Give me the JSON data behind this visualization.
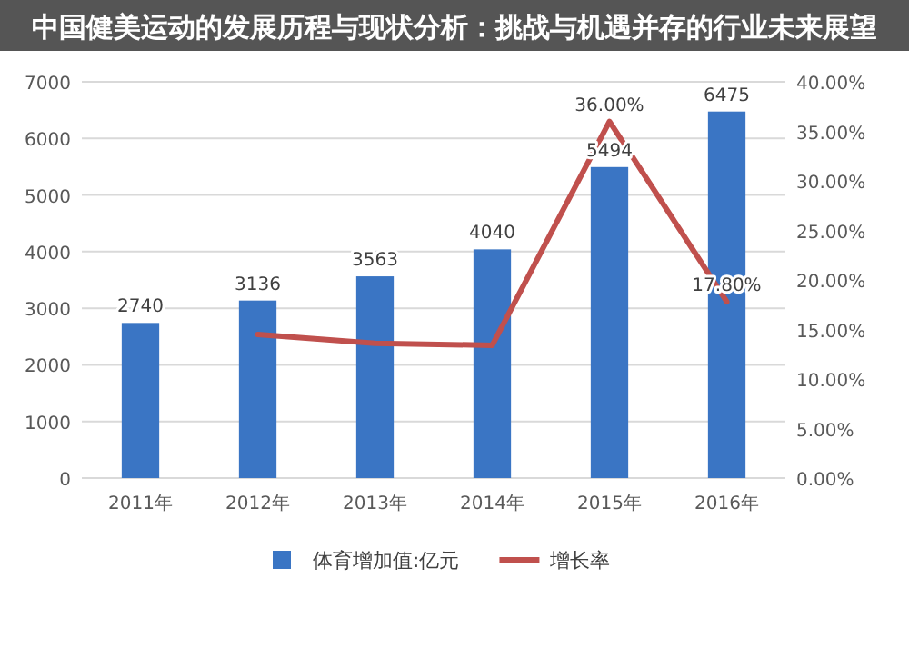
{
  "chart_data": {
    "type": "bar",
    "title": "中国健美运动的发展历程与现状分析：挑战与机遇并存的行业未来展望",
    "categories": [
      "2011年",
      "2012年",
      "2013年",
      "2014年",
      "2015年",
      "2016年"
    ],
    "series": [
      {
        "name": "体育增加值:亿元",
        "color": "#3a75c4",
        "values": [
          2740,
          3136,
          3563,
          4040,
          5494,
          6475
        ],
        "data_labels": true
      },
      {
        "name": "增长率",
        "type": "line",
        "axis": "y2",
        "color": "#c0504d",
        "values": [
          null,
          14.5,
          13.6,
          13.4,
          36.0,
          17.8
        ],
        "value_labels": [
          null,
          null,
          null,
          null,
          "36.00%",
          "17.80%"
        ]
      }
    ],
    "ylim": [
      0,
      7000
    ],
    "yticks": [
      0,
      1000,
      2000,
      3000,
      4000,
      5000,
      6000,
      7000
    ],
    "y2lim": [
      0,
      40
    ],
    "y2ticks": [
      {
        "value": 0,
        "label": "0.00%"
      },
      {
        "value": 5,
        "label": "5.00%"
      },
      {
        "value": 10,
        "label": "10.00%"
      },
      {
        "value": 15,
        "label": "15.00%"
      },
      {
        "value": 20,
        "label": "20.00%"
      },
      {
        "value": 25,
        "label": "25.00%"
      },
      {
        "value": 30,
        "label": "30.00%"
      },
      {
        "value": 35,
        "label": "35.00%"
      },
      {
        "value": 40,
        "label": "40.00%"
      }
    ],
    "grid": "y",
    "legend": "bottom",
    "marker": "none",
    "line_style": "solid"
  }
}
